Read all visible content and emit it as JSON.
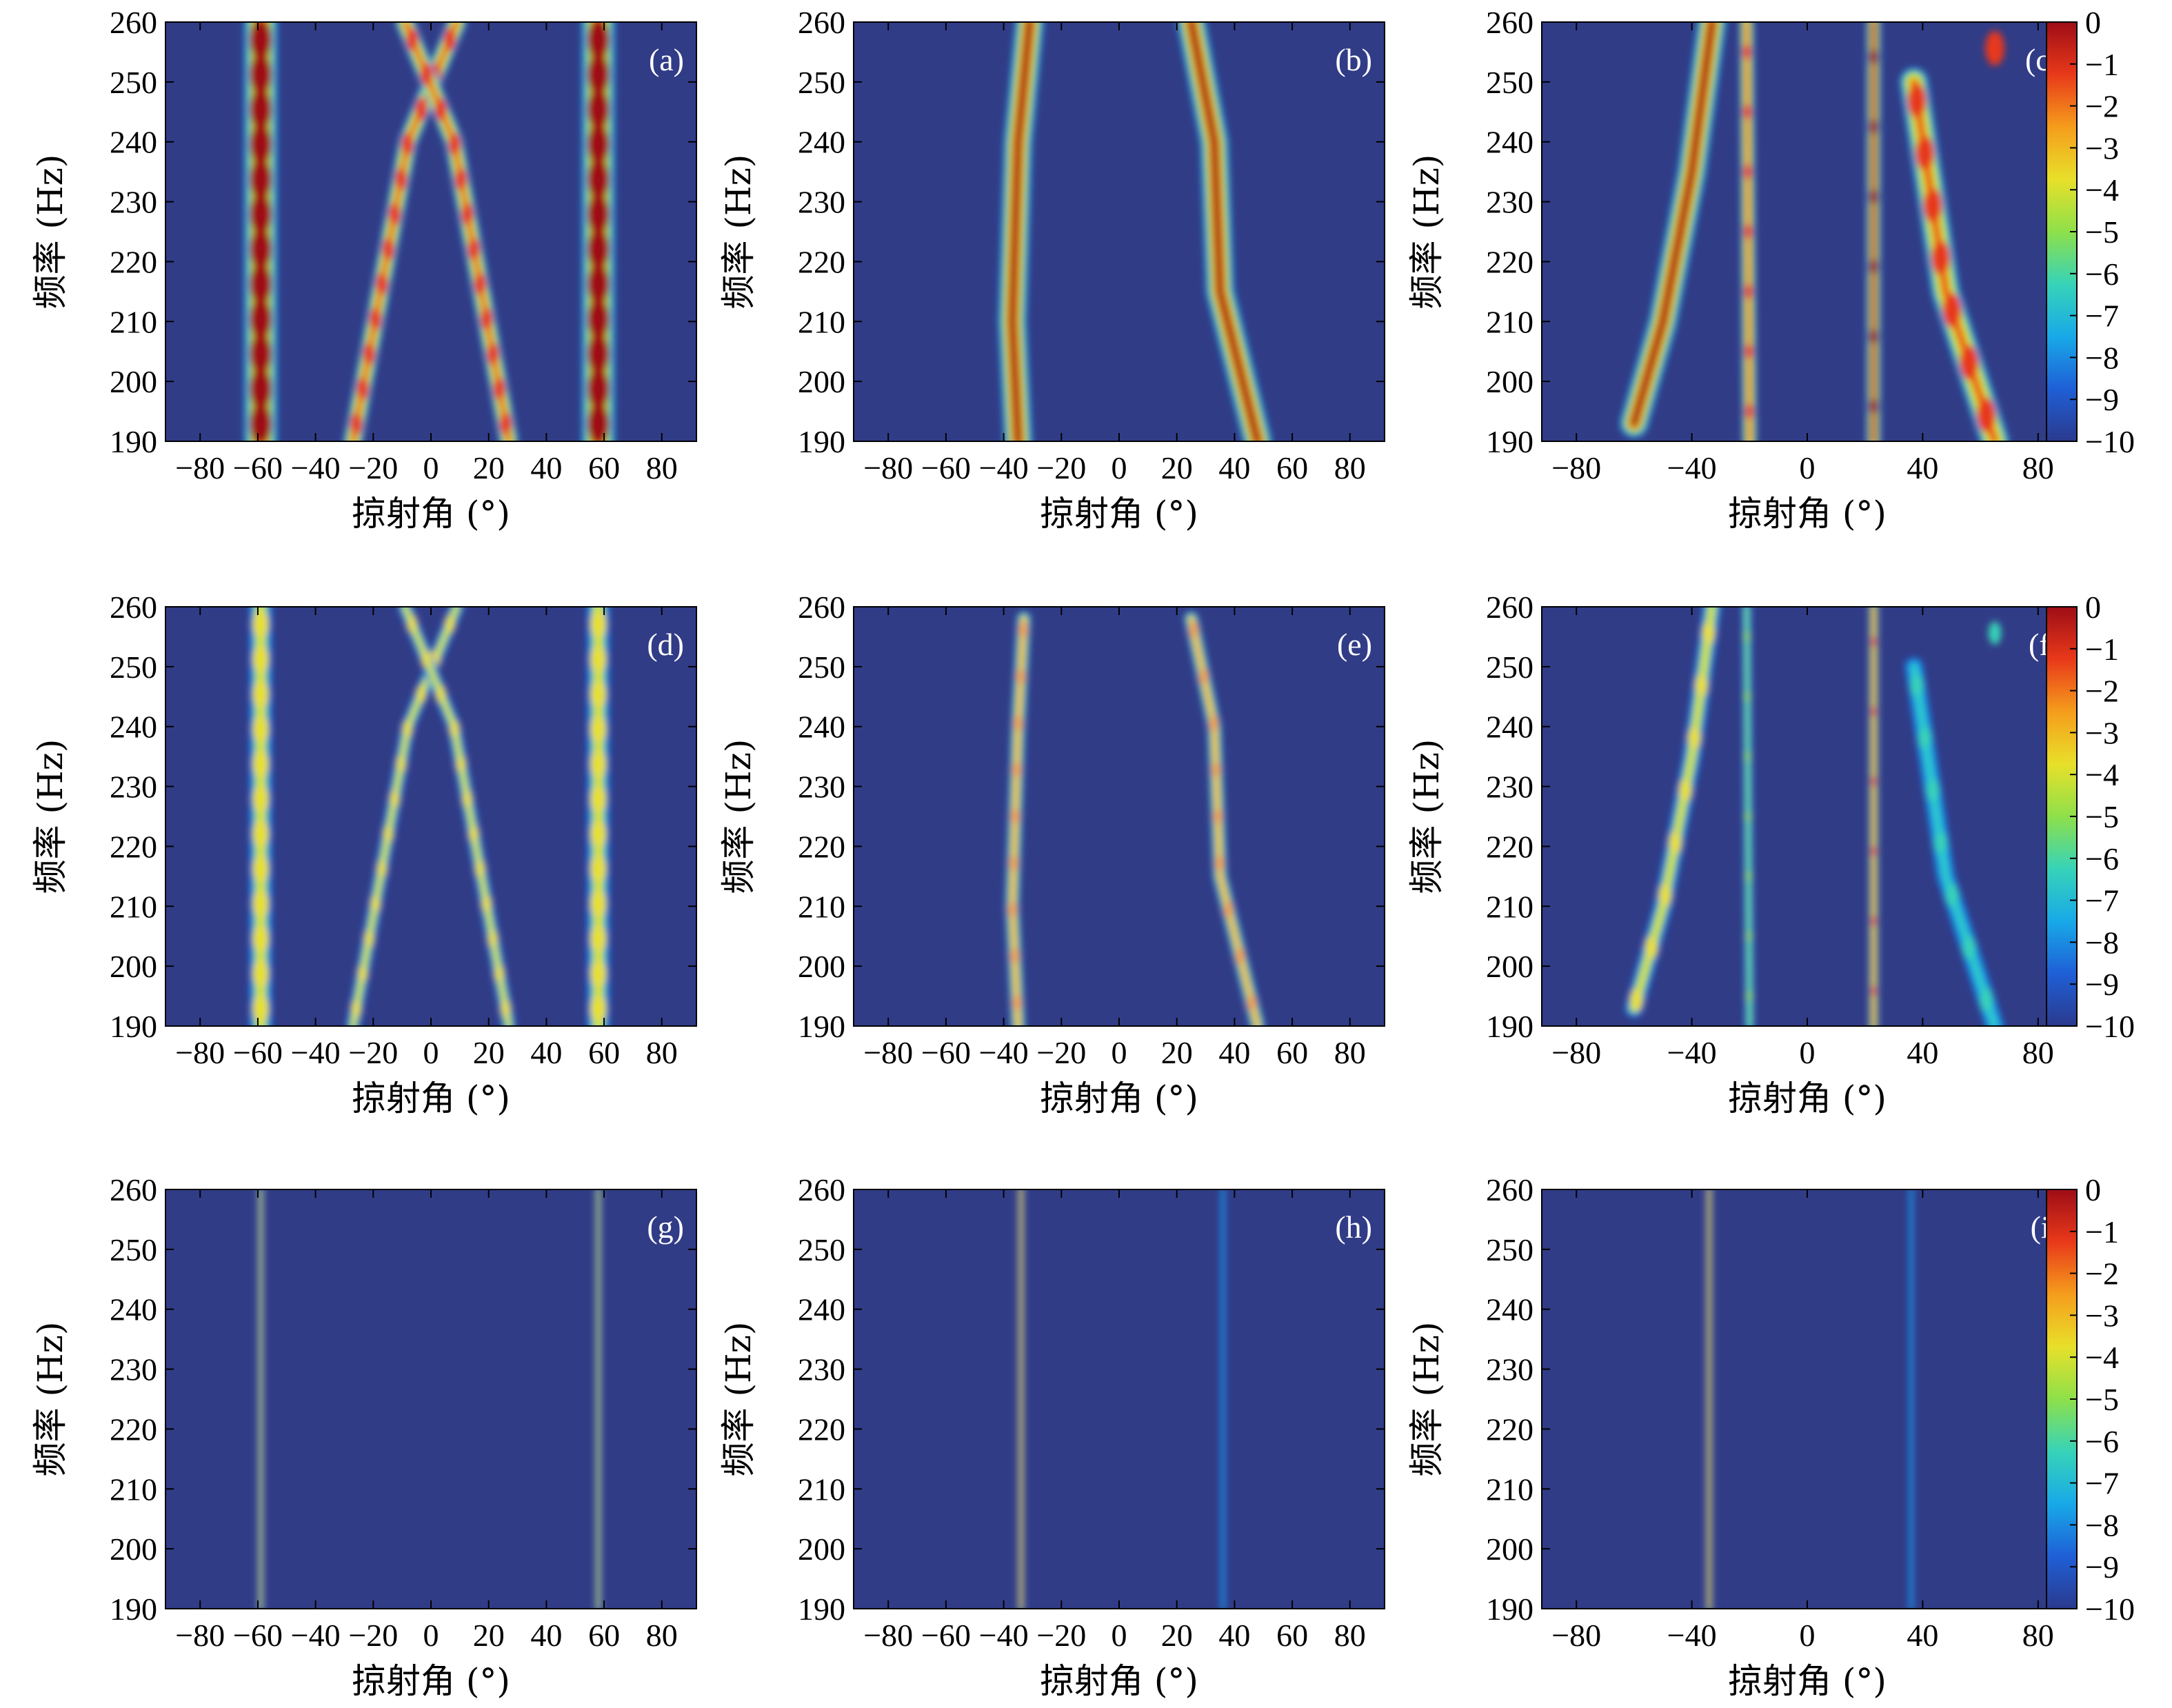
{
  "colors": {
    "background": "#313c87",
    "axes": "#000000",
    "panel_label": "#ffffff"
  },
  "colorscale": [
    "#2b3a8e",
    "#1f5fd6",
    "#18a9e8",
    "#37d3b8",
    "#8ee04a",
    "#e8e02a",
    "#f59d1c",
    "#e8391a",
    "#9e0d16"
  ],
  "chart_data": {
    "type": "heatmap",
    "xlabel": "掠射角 (°)",
    "ylabel": "频率 (Hz)",
    "ylim": [
      190,
      260
    ],
    "y_ticks": [
      "190",
      "200",
      "210",
      "220",
      "230",
      "240",
      "250",
      "260"
    ],
    "colorbar": {
      "range": [
        -10,
        0
      ],
      "ticks": [
        "0",
        "−1",
        "−2",
        "−3",
        "−4",
        "−5",
        "−6",
        "−7",
        "−8",
        "−9",
        "−10"
      ],
      "rows": [
        "top",
        "middle",
        "bottom"
      ]
    },
    "panels": [
      {
        "label": "(a)",
        "xlim": [
          -92,
          92
        ],
        "x_ticks": [
          "−80",
          "−60",
          "−40",
          "−20",
          "0",
          "20",
          "40",
          "60",
          "80"
        ],
        "x_tick_values": [
          -80,
          -60,
          -40,
          -20,
          0,
          20,
          40,
          60,
          80
        ],
        "ridges": [
          {
            "points": [
              [
                -59,
                190
              ],
              [
                -59,
                260
              ]
            ],
            "width": 7,
            "peak": 0,
            "blobs": 12
          },
          {
            "points": [
              [
                58,
                190
              ],
              [
                58,
                260
              ]
            ],
            "width": 7,
            "peak": 0,
            "blobs": 12
          },
          {
            "points": [
              [
                -27,
                190
              ],
              [
                -8,
                240
              ],
              [
                9,
                260
              ]
            ],
            "width": 4,
            "peak": -1,
            "blobs": 12
          },
          {
            "points": [
              [
                27,
                190
              ],
              [
                8,
                240
              ],
              [
                -9,
                260
              ]
            ],
            "width": 4,
            "peak": -1,
            "blobs": 12
          }
        ]
      },
      {
        "label": "(b)",
        "xlim": [
          -92,
          92
        ],
        "x_ticks": [
          "−80",
          "−60",
          "−40",
          "−20",
          "0",
          "20",
          "40",
          "60",
          "80"
        ],
        "x_tick_values": [
          -80,
          -60,
          -40,
          -20,
          0,
          20,
          40,
          60,
          80
        ],
        "ridges": [
          {
            "points": [
              [
                -35,
                190
              ],
              [
                -37,
                210
              ],
              [
                -35,
                240
              ],
              [
                -31,
                260
              ]
            ],
            "width": 6,
            "peak": 0,
            "blobs": 0
          },
          {
            "points": [
              [
                48,
                190
              ],
              [
                35,
                215
              ],
              [
                33,
                240
              ],
              [
                25,
                260
              ]
            ],
            "width": 6,
            "peak": 0,
            "blobs": 0
          }
        ]
      },
      {
        "label": "(c)",
        "xlim": [
          -92,
          92
        ],
        "x_ticks": [
          "−80",
          "−40",
          "0",
          "40",
          "80"
        ],
        "x_tick_values": [
          -80,
          -40,
          0,
          40,
          80
        ],
        "ridges": [
          {
            "points": [
              [
                -60,
                193
              ],
              [
                -50,
                210
              ],
              [
                -40,
                235
              ],
              [
                -33,
                260
              ]
            ],
            "width": 6,
            "peak": 0,
            "blobs": 0
          },
          {
            "points": [
              [
                -20,
                190
              ],
              [
                -21,
                260
              ]
            ],
            "width": 3,
            "peak": -1,
            "blobs": 7
          },
          {
            "points": [
              [
                23,
                190
              ],
              [
                23,
                260
              ]
            ],
            "width": 3,
            "peak": 0,
            "blobs": 6
          },
          {
            "points": [
              [
                65,
                190
              ],
              [
                48,
                215
              ],
              [
                37,
                250
              ]
            ],
            "width": 6,
            "peak": -1,
            "blobs": 8
          }
        ]
      },
      {
        "label": "(d)",
        "xlim": [
          -92,
          92
        ],
        "x_ticks": [
          "−80",
          "−60",
          "−40",
          "−20",
          "0",
          "20",
          "40",
          "60",
          "80"
        ],
        "x_tick_values": [
          -80,
          -60,
          -40,
          -20,
          0,
          20,
          40,
          60,
          80
        ],
        "ridges": [
          {
            "points": [
              [
                -59,
                190
              ],
              [
                -59,
                260
              ]
            ],
            "width": 5,
            "peak": -4,
            "blobs": 12
          },
          {
            "points": [
              [
                58,
                190
              ],
              [
                58,
                260
              ]
            ],
            "width": 5,
            "peak": -4,
            "blobs": 12
          },
          {
            "points": [
              [
                -27,
                190
              ],
              [
                -8,
                240
              ],
              [
                9,
                260
              ]
            ],
            "width": 3,
            "peak": -4,
            "blobs": 12
          },
          {
            "points": [
              [
                27,
                190
              ],
              [
                8,
                240
              ],
              [
                -9,
                260
              ]
            ],
            "width": 3,
            "peak": -4,
            "blobs": 12
          }
        ]
      },
      {
        "label": "(e)",
        "xlim": [
          -92,
          92
        ],
        "x_ticks": [
          "−80",
          "−60",
          "−40",
          "−20",
          "0",
          "20",
          "40",
          "60",
          "80"
        ],
        "x_tick_values": [
          -80,
          -60,
          -40,
          -20,
          0,
          20,
          40,
          60,
          80
        ],
        "ridges": [
          {
            "points": [
              [
                -35,
                190
              ],
              [
                -37,
                210
              ],
              [
                -35,
                240
              ],
              [
                -33,
                258
              ]
            ],
            "width": 3,
            "peak": -2,
            "blobs": 9
          },
          {
            "points": [
              [
                48,
                190
              ],
              [
                35,
                215
              ],
              [
                33,
                240
              ],
              [
                25,
                258
              ]
            ],
            "width": 3,
            "peak": -2,
            "blobs": 9
          }
        ]
      },
      {
        "label": "(f)",
        "xlim": [
          -92,
          92
        ],
        "x_ticks": [
          "−80",
          "−40",
          "0",
          "40",
          "80"
        ],
        "x_tick_values": [
          -80,
          -40,
          0,
          40,
          80
        ],
        "ridges": [
          {
            "points": [
              [
                -60,
                193
              ],
              [
                -50,
                210
              ],
              [
                -40,
                235
              ],
              [
                -33,
                260
              ]
            ],
            "width": 4,
            "peak": -4,
            "blobs": 8
          },
          {
            "points": [
              [
                -20,
                190
              ],
              [
                -21,
                260
              ]
            ],
            "width": 2,
            "peak": -5,
            "blobs": 7
          },
          {
            "points": [
              [
                23,
                190
              ],
              [
                23,
                260
              ]
            ],
            "width": 2,
            "peak": -1,
            "blobs": 6
          },
          {
            "points": [
              [
                65,
                190
              ],
              [
                48,
                215
              ],
              [
                37,
                250
              ]
            ],
            "width": 4,
            "peak": -6,
            "blobs": 8
          }
        ]
      },
      {
        "label": "(g)",
        "xlim": [
          -92,
          92
        ],
        "x_ticks": [
          "−80",
          "−60",
          "−40",
          "−20",
          "0",
          "20",
          "40",
          "60",
          "80"
        ],
        "x_tick_values": [
          -80,
          -60,
          -40,
          -20,
          0,
          20,
          40,
          60,
          80
        ],
        "ridges": [
          {
            "points": [
              [
                -59,
                190
              ],
              [
                -59,
                260
              ]
            ],
            "width": 1.2,
            "peak": -3,
            "blobs": 0
          },
          {
            "points": [
              [
                58,
                190
              ],
              [
                58,
                260
              ]
            ],
            "width": 1.2,
            "peak": -3,
            "blobs": 0
          }
        ]
      },
      {
        "label": "(h)",
        "xlim": [
          -92,
          92
        ],
        "x_ticks": [
          "−80",
          "−60",
          "−40",
          "−20",
          "0",
          "20",
          "40",
          "60",
          "80"
        ],
        "x_tick_values": [
          -80,
          -60,
          -40,
          -20,
          0,
          20,
          40,
          60,
          80
        ],
        "ridges": [
          {
            "points": [
              [
                -34,
                190
              ],
              [
                -34,
                260
              ]
            ],
            "width": 1.2,
            "peak": -1,
            "blobs": 0
          },
          {
            "points": [
              [
                36,
                190
              ],
              [
                36,
                260
              ]
            ],
            "width": 1.0,
            "peak": -7,
            "blobs": 0
          }
        ]
      },
      {
        "label": "(i)",
        "xlim": [
          -92,
          92
        ],
        "x_ticks": [
          "−80",
          "−40",
          "0",
          "40",
          "80"
        ],
        "x_tick_values": [
          -80,
          -40,
          0,
          40,
          80
        ],
        "ridges": [
          {
            "points": [
              [
                -34,
                190
              ],
              [
                -34,
                260
              ]
            ],
            "width": 1.2,
            "peak": -1,
            "blobs": 0
          },
          {
            "points": [
              [
                36,
                190
              ],
              [
                36,
                260
              ]
            ],
            "width": 1.0,
            "peak": -7,
            "blobs": 0
          }
        ]
      }
    ]
  }
}
